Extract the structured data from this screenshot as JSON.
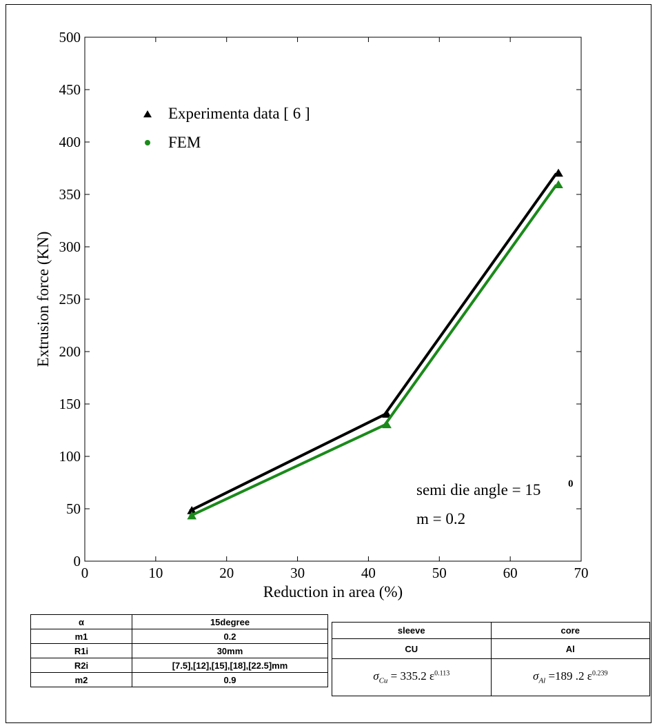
{
  "chart_data": {
    "type": "line",
    "xlabel": "Reduction in area (%)",
    "ylabel": "Extrusion force (KN)",
    "xlim": [
      0,
      70
    ],
    "ylim": [
      0,
      500
    ],
    "xticks": [
      "0",
      "10",
      "20",
      "30",
      "40",
      "50",
      "60",
      "70"
    ],
    "yticks": [
      "0",
      "50",
      "100",
      "150",
      "200",
      "250",
      "300",
      "350",
      "400",
      "450",
      "500"
    ],
    "grid": false,
    "legend_position": "top-left",
    "series": [
      {
        "name": "Experimenta data [ 6 ]",
        "marker": "triangle",
        "color": "#000000",
        "x": [
          14.8,
          42.3,
          66.5
        ],
        "y": [
          48,
          140,
          370
        ]
      },
      {
        "name": "FEM",
        "marker": "circle",
        "color": "#1a8a1a",
        "x": [
          14.8,
          42.3,
          66.5
        ],
        "y": [
          43,
          130,
          359
        ]
      }
    ],
    "annotations": {
      "angle_text": "semi die angle = 15",
      "angle_sup": "0",
      "m_text": "m = 0.2"
    }
  },
  "left_table": [
    [
      "α",
      "15degree"
    ],
    [
      "m1",
      "0.2"
    ],
    [
      "R1i",
      "30mm"
    ],
    [
      "R2i",
      "[7.5],[12],[15],[18],[22.5]mm"
    ],
    [
      "m2",
      "0.9"
    ]
  ],
  "right_table": {
    "headers": [
      "sleeve",
      "core"
    ],
    "materials": [
      "CU",
      "Al"
    ],
    "eq_cu": {
      "sym": "σ",
      "sub": "Cu",
      "body": " = 335.2 ε",
      "exp": "0.113"
    },
    "eq_al": {
      "sym": "σ",
      "sub": "Al",
      "body": " =189 .2 ε",
      "exp": "0.239"
    }
  }
}
